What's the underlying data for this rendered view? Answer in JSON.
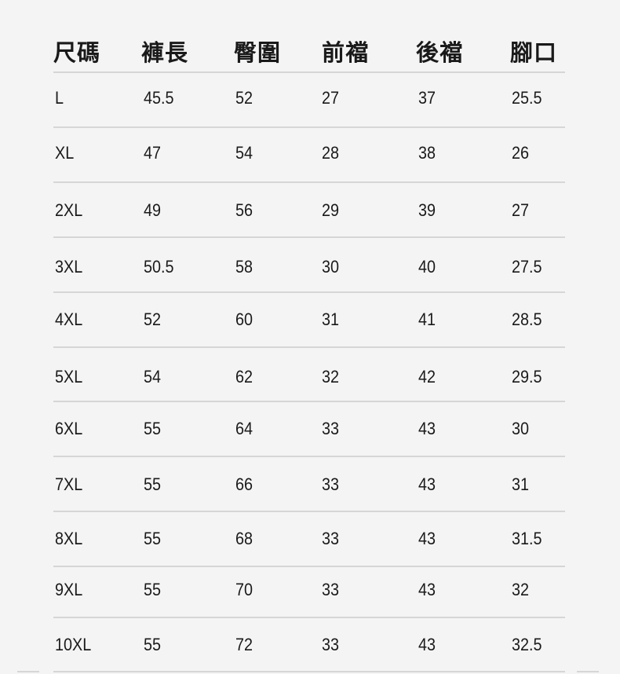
{
  "headers": [
    "尺碼",
    "褲長",
    "臀圍",
    "前襠",
    "後襠",
    "腳口"
  ],
  "rows": [
    [
      "L",
      "45.5",
      "52",
      "27",
      "37",
      "25.5"
    ],
    [
      "XL",
      "47",
      "54",
      "28",
      "38",
      "26"
    ],
    [
      "2XL",
      "49",
      "56",
      "29",
      "39",
      "27"
    ],
    [
      "3XL",
      "50.5",
      "58",
      "30",
      "40",
      "27.5"
    ],
    [
      "4XL",
      "52",
      "60",
      "31",
      "41",
      "28.5"
    ],
    [
      "5XL",
      "54",
      "62",
      "32",
      "42",
      "29.5"
    ],
    [
      "6XL",
      "55",
      "64",
      "33",
      "43",
      "30"
    ],
    [
      "7XL",
      "55",
      "66",
      "33",
      "43",
      "31"
    ],
    [
      "8XL",
      "55",
      "68",
      "33",
      "43",
      "31.5"
    ],
    [
      "9XL",
      "55",
      "70",
      "33",
      "43",
      "32"
    ],
    [
      "10XL",
      "55",
      "72",
      "33",
      "43",
      "32.5"
    ]
  ]
}
